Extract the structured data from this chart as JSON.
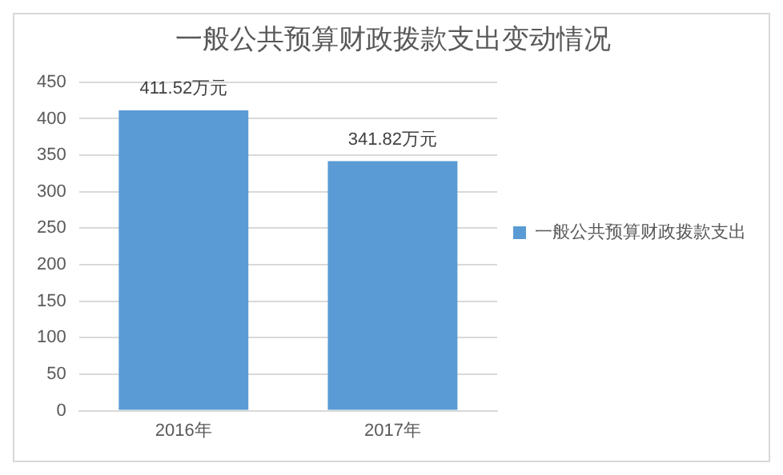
{
  "chart_data": {
    "type": "bar",
    "title": "一般公共预算财政拨款支出变动情况",
    "categories": [
      "2016年",
      "2017年"
    ],
    "series": [
      {
        "name": "一般公共预算财政拨款支出",
        "color": "#5b9bd5",
        "values": [
          411.52,
          341.82
        ],
        "value_labels": [
          "411.52万元",
          "341.82万元"
        ]
      }
    ],
    "ylim": [
      0,
      450
    ],
    "yticks": [
      0,
      50,
      100,
      150,
      200,
      250,
      300,
      350,
      400,
      450
    ],
    "grid": "y",
    "legend": "right"
  }
}
